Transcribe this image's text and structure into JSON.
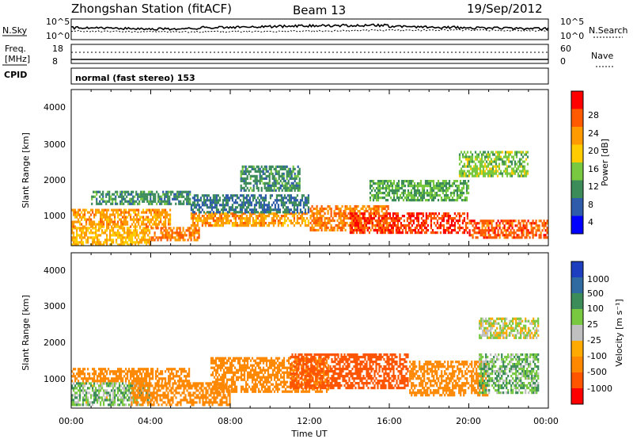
{
  "header": {
    "station": "Zhongshan Station (fitACF)",
    "beam": "Beam 13",
    "date": "19/Sep/2012"
  },
  "top_panels": {
    "nsky_label": "N.Sky",
    "nsearch_label": "N.Search",
    "freq_label_line1": "Freq.",
    "freq_label_line2": "[MHz]",
    "nave_label": "Nave",
    "cpid_label": "CPID",
    "cpid_text": "normal (fast stereo) 153",
    "nsky_ticks": [
      "10^5",
      "10^0"
    ],
    "nsearch_ticks": [
      "10^5",
      "10^0"
    ],
    "freq_ticks": [
      "18",
      "8"
    ],
    "nave_ticks": [
      "60",
      "0"
    ]
  },
  "axes": {
    "ylabel": "Slant Range [km]",
    "xlabel": "Time UT",
    "yticks": [
      "4000",
      "3000",
      "2000",
      "1000"
    ],
    "xticks": [
      "00:00",
      "04:00",
      "08:00",
      "12:00",
      "16:00",
      "20:00",
      "00:00"
    ]
  },
  "power_colorbar": {
    "label": "Power [dB]",
    "ticks": [
      "28",
      "24",
      "20",
      "16",
      "12",
      "8",
      "4"
    ],
    "colors": [
      "#ff0000",
      "#ff5a00",
      "#ff9a00",
      "#ffcc00",
      "#78c840",
      "#3c8c5a",
      "#2f5caa",
      "#0000ff"
    ]
  },
  "velocity_colorbar": {
    "label": "Velocity [m s⁻¹]",
    "ticks": [
      "1000",
      "500",
      "100",
      "25",
      "-25",
      "-100",
      "-500",
      "-1000"
    ],
    "colors": [
      "#1d3fbf",
      "#2f6aa0",
      "#3c8c5a",
      "#78c840",
      "#c0c0c0",
      "#ffaa00",
      "#ff8800",
      "#ff5500",
      "#ff0000"
    ]
  },
  "chart_data": [
    {
      "type": "heatmap",
      "title": "Power",
      "xlabel": "Time UT",
      "ylabel": "Slant Range [km]",
      "xlim_hours": [
        0,
        24
      ],
      "ylim_km": [
        180,
        4500
      ],
      "xticks": [
        "00:00",
        "04:00",
        "08:00",
        "12:00",
        "16:00",
        "20:00",
        "00:00"
      ],
      "yticks": [
        4000,
        3000,
        2000,
        1000
      ],
      "colorbar_label": "Power [dB]",
      "colorbar_ticks": [
        4,
        8,
        12,
        16,
        20,
        24,
        28
      ],
      "regions": [
        {
          "t": [
            0,
            4
          ],
          "r": [
            180,
            700
          ],
          "level": 20
        },
        {
          "t": [
            0,
            5
          ],
          "r": [
            700,
            1200
          ],
          "level": 22
        },
        {
          "t": [
            1,
            6
          ],
          "r": [
            1300,
            1700
          ],
          "level": 10
        },
        {
          "t": [
            4,
            6.5
          ],
          "r": [
            300,
            700
          ],
          "level": 24
        },
        {
          "t": [
            6,
            12
          ],
          "r": [
            700,
            1100
          ],
          "level": 22
        },
        {
          "t": [
            6,
            12
          ],
          "r": [
            1100,
            1600
          ],
          "level": 8
        },
        {
          "t": [
            8.5,
            11.5
          ],
          "r": [
            1700,
            2400
          ],
          "level": 10
        },
        {
          "t": [
            12,
            16
          ],
          "r": [
            600,
            1300
          ],
          "level": 24
        },
        {
          "t": [
            14,
            20
          ],
          "r": [
            500,
            1100
          ],
          "level": 28
        },
        {
          "t": [
            15,
            20
          ],
          "r": [
            1400,
            2000
          ],
          "level": 12
        },
        {
          "t": [
            19.5,
            23
          ],
          "r": [
            2100,
            2800
          ],
          "level": 14
        },
        {
          "t": [
            20,
            24
          ],
          "r": [
            350,
            900
          ],
          "level": 26
        }
      ]
    },
    {
      "type": "heatmap",
      "title": "Velocity",
      "xlabel": "Time UT",
      "ylabel": "Slant Range [km]",
      "xlim_hours": [
        0,
        24
      ],
      "ylim_km": [
        180,
        4500
      ],
      "xticks": [
        "00:00",
        "04:00",
        "08:00",
        "12:00",
        "16:00",
        "20:00",
        "00:00"
      ],
      "yticks": [
        4000,
        3000,
        2000,
        1000
      ],
      "colorbar_label": "Velocity [m s⁻¹]",
      "colorbar_ticks": [
        1000,
        500,
        100,
        25,
        -25,
        -100,
        -500,
        -1000
      ],
      "regions": [
        {
          "t": [
            0,
            4
          ],
          "r": [
            250,
            900
          ],
          "level": 60
        },
        {
          "t": [
            0,
            6
          ],
          "r": [
            900,
            1300
          ],
          "level": -300
        },
        {
          "t": [
            3,
            8
          ],
          "r": [
            250,
            900
          ],
          "level": -200
        },
        {
          "t": [
            7,
            13
          ],
          "r": [
            600,
            1600
          ],
          "level": -400
        },
        {
          "t": [
            11,
            17
          ],
          "r": [
            700,
            1700
          ],
          "level": -600
        },
        {
          "t": [
            17,
            21
          ],
          "r": [
            500,
            1500
          ],
          "level": -300
        },
        {
          "t": [
            20.5,
            23.5
          ],
          "r": [
            600,
            1700
          ],
          "level": 80
        },
        {
          "t": [
            20.5,
            23.5
          ],
          "r": [
            2100,
            2700
          ],
          "level": 0
        }
      ]
    }
  ]
}
